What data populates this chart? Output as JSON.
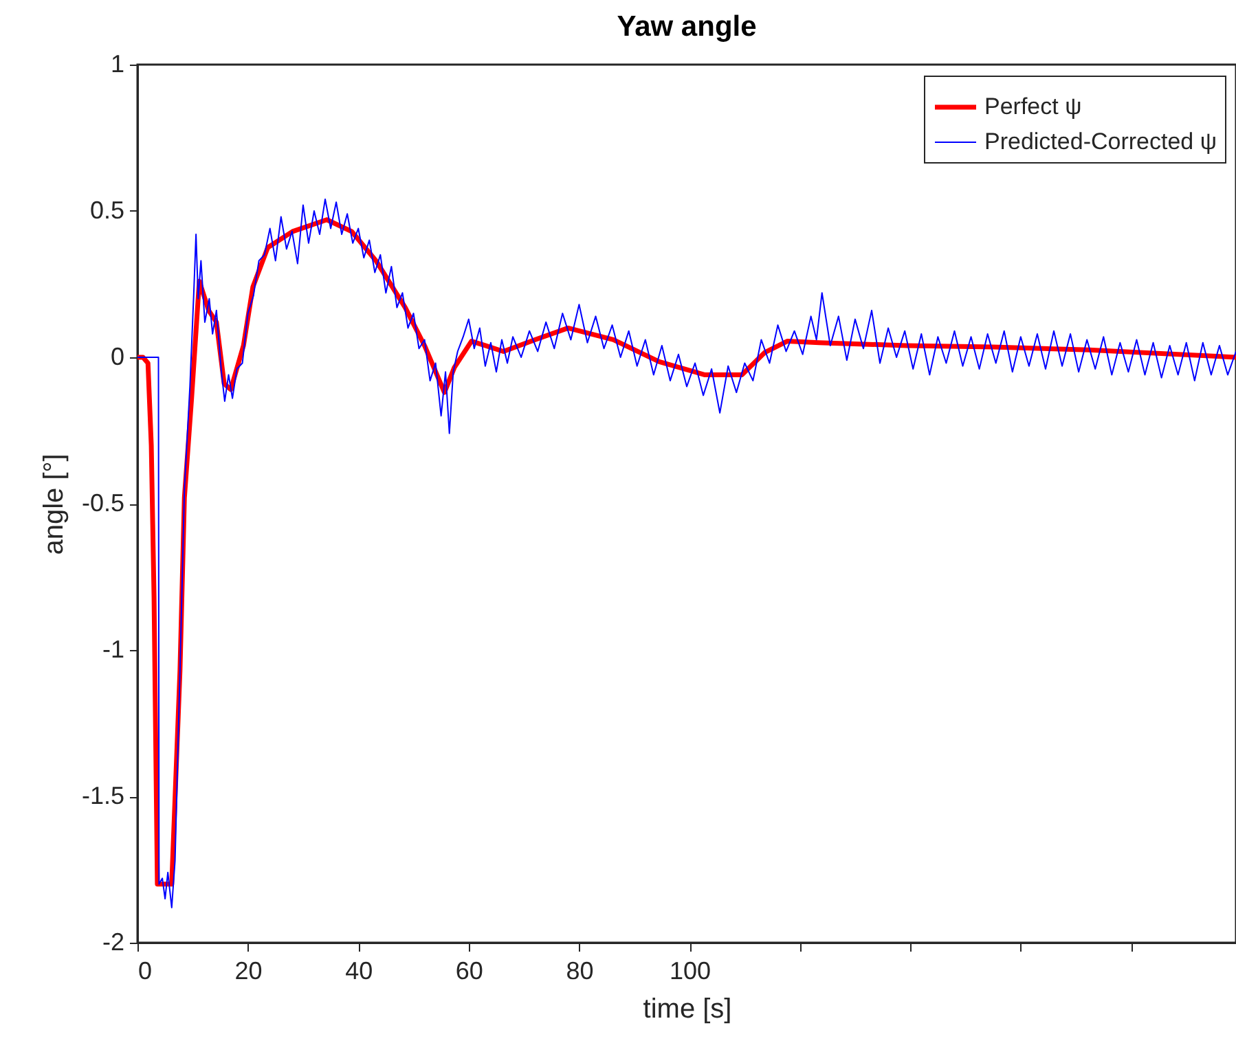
{
  "chart_data": {
    "type": "line",
    "title": "Yaw angle",
    "xlabel": "time [s]",
    "ylabel": "angle [°]",
    "xlim": [
      0,
      199
    ],
    "xticks": [
      0,
      20,
      40,
      60,
      80,
      100,
      {
        "value": 120,
        "label": null
      },
      {
        "value": 140,
        "label": null
      },
      {
        "value": 160,
        "label": null
      },
      {
        "value": 180,
        "label": null
      }
    ],
    "ylim": [
      -2,
      1
    ],
    "yticks": [
      -2,
      -1.5,
      -1,
      -0.5,
      0,
      0.5,
      1
    ],
    "legend": "top right",
    "series": [
      {
        "name": "Perfect ψ",
        "color": "#ff0000",
        "x": [
          0,
          1,
          1.9,
          2.5,
          3.0,
          3.6,
          6.2,
          7.7,
          8.5,
          9.8,
          11.2,
          12.9,
          14.3,
          15.7,
          16.9,
          19.2,
          20.9,
          23.6,
          28.1,
          34.3,
          38.8,
          43.2,
          48.5,
          52,
          55.6,
          57.4,
          60.5,
          63,
          66.3,
          72,
          78,
          86.2,
          94.5,
          102.8,
          109.5,
          113.6,
          117.7,
          123.5,
          139.3,
          155,
          172.4,
          199
        ],
        "values": [
          0,
          0,
          -0.02,
          -0.3,
          -0.82,
          -1.8,
          -1.8,
          -1.07,
          -0.48,
          -0.14,
          0.26,
          0.16,
          0.12,
          -0.09,
          -0.11,
          0.04,
          0.24,
          0.375,
          0.43,
          0.47,
          0.43,
          0.33,
          0.17,
          0.04,
          -0.12,
          -0.035,
          0.055,
          0.04,
          0.02,
          0.06,
          0.1,
          0.06,
          -0.015,
          -0.06,
          -0.06,
          0.016,
          0.055,
          0.05,
          0.04,
          0.035,
          0.025,
          0
        ]
      },
      {
        "name": "Predicted-Corrected ψ",
        "color": "#0000ff",
        "x": [
          0,
          3.8,
          3.9,
          4.5,
          5.0,
          5.5,
          6.2,
          6.8,
          7.7,
          8.5,
          9.5,
          10.2,
          10.6,
          11.0,
          11.5,
          12.2,
          13.0,
          13.6,
          14.3,
          15.2,
          15.8,
          16.5,
          17.2,
          18.0,
          19.0,
          20,
          21,
          22,
          23,
          24,
          25,
          26,
          27,
          28,
          29,
          30,
          31,
          32,
          33,
          34,
          35,
          36,
          37,
          38,
          39,
          40,
          41,
          42,
          43,
          44,
          45,
          46,
          47,
          48,
          49,
          50,
          51,
          52,
          53,
          54,
          55,
          55.8,
          56.5,
          57.2,
          58,
          59,
          60,
          61,
          62,
          63,
          64,
          65,
          66,
          67,
          68,
          69.5,
          71,
          72.5,
          74,
          75.5,
          77,
          78.5,
          80,
          81.5,
          83,
          84.5,
          86,
          87.5,
          89,
          90.5,
          92,
          93.5,
          95,
          96.5,
          98,
          99.5,
          101,
          102.5,
          104,
          105.5,
          107,
          108.5,
          110,
          111.5,
          113,
          114.5,
          116,
          117.5,
          119,
          120.5,
          122,
          123,
          124,
          125.5,
          127,
          128.5,
          130,
          131.5,
          133,
          134.5,
          136,
          137.5,
          139,
          140.5,
          142,
          143.5,
          145,
          146.5,
          148,
          149.5,
          151,
          152.5,
          154,
          155.5,
          157,
          158.5,
          160,
          161.5,
          163,
          164.5,
          166,
          167.5,
          169,
          170.5,
          172,
          173.5,
          175,
          176.5,
          178,
          179.5,
          181,
          182.5,
          184,
          185.5,
          187,
          188.5,
          190,
          191.5,
          193,
          194.5,
          196,
          197.5,
          199
        ],
        "values": [
          0,
          0,
          -1.8,
          -1.78,
          -1.85,
          -1.76,
          -1.88,
          -1.72,
          -1.07,
          -0.45,
          -0.1,
          0.22,
          0.42,
          0.2,
          0.33,
          0.12,
          0.2,
          0.08,
          0.16,
          -0.05,
          -0.15,
          -0.06,
          -0.14,
          -0.04,
          -0.02,
          0.15,
          0.21,
          0.33,
          0.35,
          0.44,
          0.33,
          0.48,
          0.37,
          0.43,
          0.32,
          0.52,
          0.39,
          0.5,
          0.42,
          0.54,
          0.44,
          0.53,
          0.42,
          0.49,
          0.39,
          0.44,
          0.34,
          0.4,
          0.29,
          0.35,
          0.22,
          0.31,
          0.17,
          0.22,
          0.1,
          0.15,
          0.03,
          0.06,
          -0.08,
          -0.02,
          -0.2,
          -0.05,
          -0.26,
          -0.05,
          0.02,
          0.07,
          0.13,
          0.03,
          0.1,
          -0.03,
          0.05,
          -0.05,
          0.06,
          -0.02,
          0.07,
          0,
          0.09,
          0.02,
          0.12,
          0.03,
          0.15,
          0.06,
          0.18,
          0.05,
          0.14,
          0.03,
          0.11,
          0,
          0.09,
          -0.03,
          0.06,
          -0.06,
          0.04,
          -0.08,
          0.01,
          -0.1,
          -0.02,
          -0.13,
          -0.04,
          -0.19,
          -0.03,
          -0.12,
          -0.02,
          -0.08,
          0.06,
          -0.02,
          0.11,
          0.02,
          0.09,
          0.01,
          0.14,
          0.06,
          0.22,
          0.04,
          0.14,
          -0.01,
          0.13,
          0.03,
          0.16,
          -0.02,
          0.1,
          0,
          0.09,
          -0.04,
          0.08,
          -0.06,
          0.07,
          -0.02,
          0.09,
          -0.03,
          0.07,
          -0.04,
          0.08,
          -0.02,
          0.09,
          -0.05,
          0.07,
          -0.03,
          0.08,
          -0.04,
          0.09,
          -0.03,
          0.08,
          -0.05,
          0.06,
          -0.04,
          0.07,
          -0.06,
          0.05,
          -0.05,
          0.06,
          -0.06,
          0.05,
          -0.07,
          0.04,
          -0.06,
          0.05,
          -0.08,
          0.05,
          -0.06,
          0.04,
          -0.06,
          0.02
        ]
      }
    ]
  }
}
